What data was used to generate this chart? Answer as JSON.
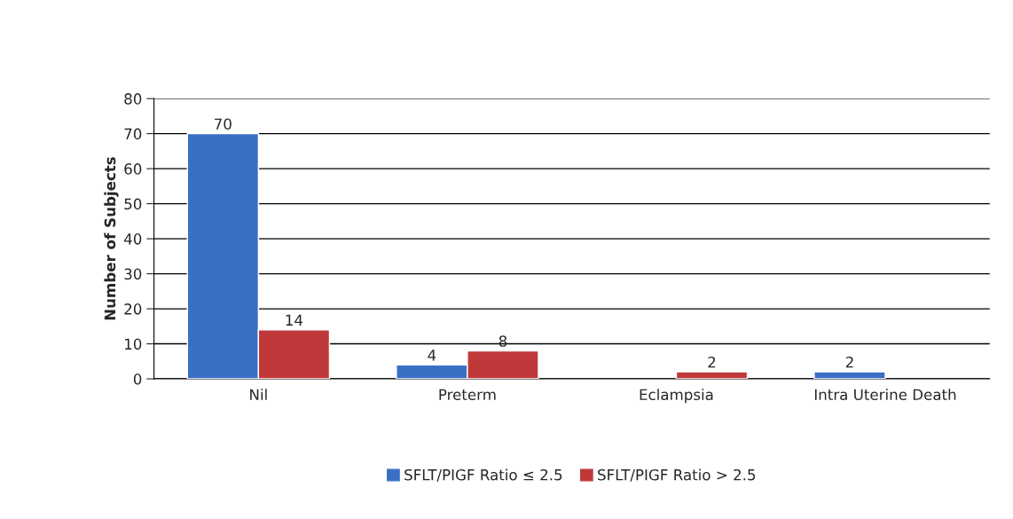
{
  "chart_data": {
    "type": "bar",
    "ylabel": "Number of Subjects",
    "categories": [
      "Nil",
      "Preterm",
      "Eclampsia",
      "Intra Uterine Death"
    ],
    "series": [
      {
        "name": "SFLT/PIGF Ratio ≤ 2.5",
        "color": "#3a6fc4",
        "values": [
          70,
          4,
          null,
          2
        ]
      },
      {
        "name": "SFLT/PIGF Ratio > 2.5",
        "color": "#c0393a",
        "values": [
          14,
          8,
          2,
          null
        ]
      }
    ],
    "ylim": [
      0,
      80
    ],
    "yticks": [
      0,
      10,
      20,
      30,
      40,
      50,
      60,
      70,
      80
    ],
    "grid": "y",
    "legend": "bottom",
    "data_labels": true
  }
}
